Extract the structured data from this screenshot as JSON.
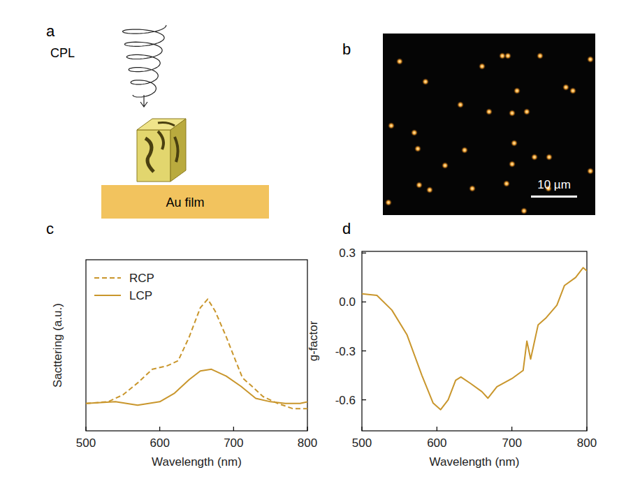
{
  "panels": {
    "a": {
      "label": "a",
      "beam": "CPL",
      "substrate": "Au film"
    },
    "b": {
      "label": "b",
      "scale_bar": "10 µm"
    }
  },
  "chart_data": [
    {
      "panel_label": "c",
      "type": "line",
      "x_label": "Wavelength (nm)",
      "y_label": "Sacttering (a.u.)",
      "xlim": [
        500,
        800
      ],
      "xticks": [
        500,
        600,
        700,
        800
      ],
      "ylim": [
        0,
        1
      ],
      "tick_labels": "x",
      "legend": "upper left",
      "series": [
        {
          "name": "RCP",
          "color": "#c9962c",
          "line_style": "dashed",
          "x": [
            500,
            530,
            550,
            570,
            590,
            610,
            625,
            640,
            655,
            665,
            675,
            690,
            700,
            712,
            725,
            740,
            760,
            780,
            800
          ],
          "values": [
            0.16,
            0.17,
            0.21,
            0.28,
            0.36,
            0.38,
            0.41,
            0.55,
            0.72,
            0.77,
            0.7,
            0.55,
            0.44,
            0.31,
            0.26,
            0.2,
            0.16,
            0.13,
            0.13
          ]
        },
        {
          "name": "LCP",
          "color": "#c9962c",
          "line_style": "solid",
          "x": [
            500,
            540,
            570,
            600,
            620,
            640,
            655,
            670,
            690,
            710,
            730,
            750,
            770,
            790,
            800
          ],
          "values": [
            0.16,
            0.17,
            0.15,
            0.17,
            0.22,
            0.3,
            0.35,
            0.36,
            0.32,
            0.26,
            0.19,
            0.17,
            0.16,
            0.16,
            0.17
          ]
        }
      ]
    },
    {
      "panel_label": "d",
      "type": "line",
      "x_label": "Wavelength (nm)",
      "y_label": "g-factor",
      "xlim": [
        500,
        800
      ],
      "xticks": [
        500,
        600,
        700,
        800
      ],
      "ylim": [
        -0.79,
        0.31
      ],
      "yticks": [
        {
          "value": 0.3,
          "label": "0.3"
        },
        {
          "value": 0,
          "label": "0.0"
        },
        {
          "value": -0.3,
          "label": "-0.3"
        },
        {
          "value": -0.6,
          "label": "-0.6"
        }
      ],
      "series": [
        {
          "name": "g-factor",
          "color": "#c9962c",
          "line_style": "solid",
          "x": [
            500,
            520,
            540,
            560,
            580,
            595,
            605,
            615,
            625,
            632,
            645,
            660,
            668,
            680,
            700,
            715,
            720,
            725,
            735,
            745,
            760,
            770,
            785,
            795,
            800
          ],
          "values": [
            0.05,
            0.04,
            -0.05,
            -0.2,
            -0.45,
            -0.62,
            -0.66,
            -0.6,
            -0.48,
            -0.46,
            -0.5,
            -0.55,
            -0.59,
            -0.52,
            -0.47,
            -0.42,
            -0.24,
            -0.35,
            -0.14,
            -0.1,
            -0.02,
            0.1,
            0.15,
            0.21,
            0.19
          ]
        }
      ]
    }
  ]
}
